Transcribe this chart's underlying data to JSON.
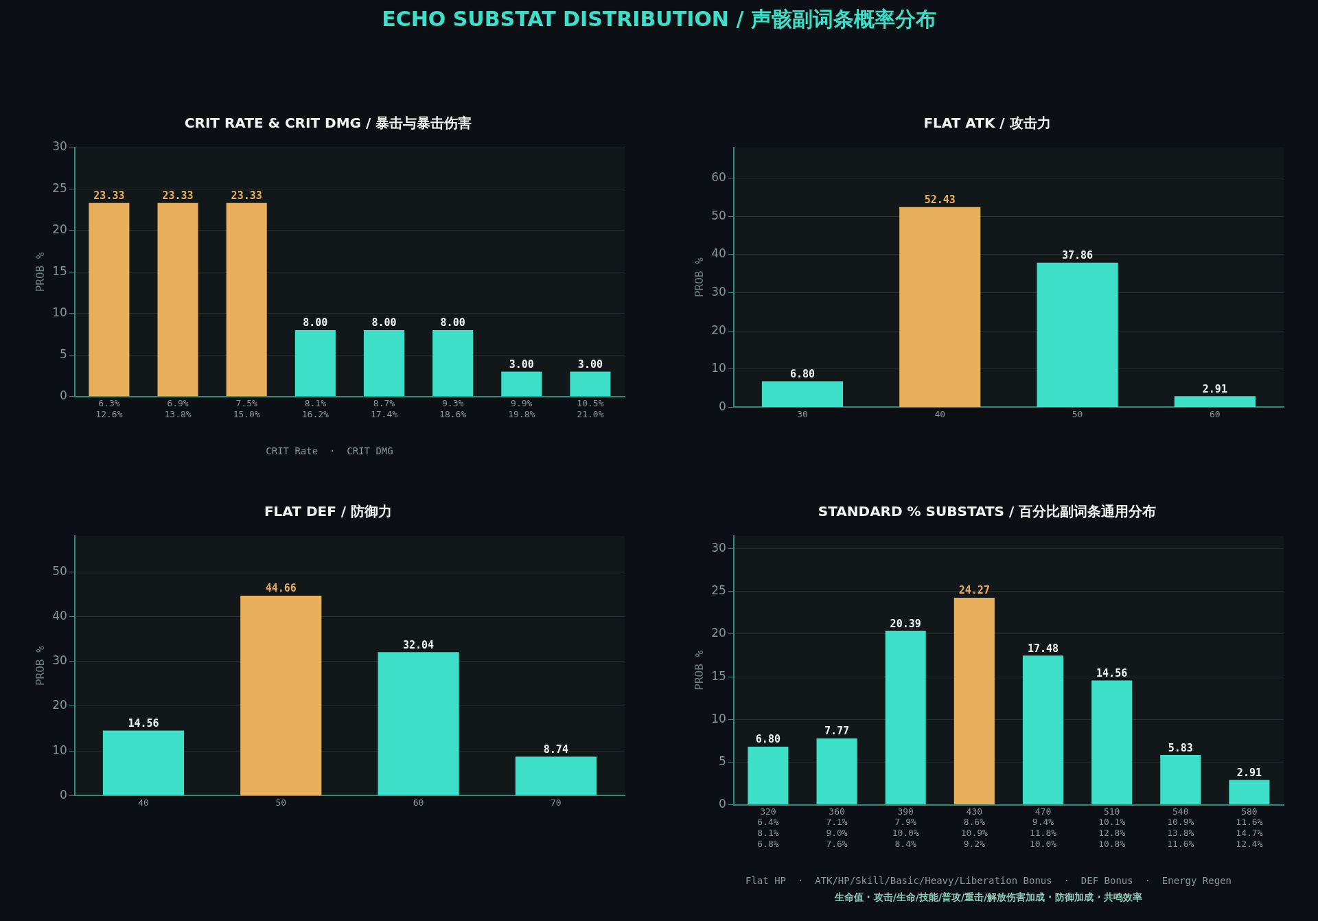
{
  "chart_data": [
    {
      "type": "other",
      "title": "ECHO SUBSTAT DISTRIBUTION / 声骸副词条概率分布"
    },
    {
      "type": "bar",
      "title": "CRIT RATE & CRIT DMG / 暴击与暴击伤害",
      "ylabel": "PROB %",
      "categories": [
        "6.3%\n12.6%",
        "6.9%\n13.8%",
        "7.5%\n15.0%",
        "8.1%\n16.2%",
        "8.7%\n17.4%",
        "9.3%\n18.6%",
        "9.9%\n19.8%",
        "10.5%\n21.0%"
      ],
      "values": [
        23.33,
        23.33,
        23.33,
        8.0,
        8.0,
        8.0,
        3.0,
        3.0
      ],
      "colors": [
        "#e8b05c",
        "#e8b05c",
        "#e8b05c",
        "#3ddfc8",
        "#3ddfc8",
        "#3ddfc8",
        "#3ddfc8",
        "#3ddfc8"
      ],
      "value_labels": [
        "23.33",
        "23.33",
        "23.33",
        "8.00",
        "8.00",
        "8.00",
        "3.00",
        "3.00"
      ],
      "ylim": [
        0,
        30
      ],
      "yticks": [
        0,
        5,
        10,
        15,
        20,
        25,
        30
      ],
      "grid": "y",
      "legend": false,
      "annotations": [
        "CRIT Rate  ·  CRIT DMG"
      ]
    },
    {
      "type": "bar",
      "title": "FLAT ATK / 攻击力",
      "ylabel": "PROB %",
      "categories": [
        "30",
        "40",
        "50",
        "60"
      ],
      "values": [
        6.8,
        52.43,
        37.86,
        2.91
      ],
      "colors": [
        "#3ddfc8",
        "#e8b05c",
        "#3ddfc8",
        "#3ddfc8"
      ],
      "value_labels": [
        "6.80",
        "52.43",
        "37.86",
        "2.91"
      ],
      "ylim": [
        0,
        68
      ],
      "yticks": [
        0,
        10,
        20,
        30,
        40,
        50,
        60
      ],
      "grid": "y",
      "legend": false
    },
    {
      "type": "bar",
      "title": "FLAT DEF / 防御力",
      "ylabel": "PROB %",
      "categories": [
        "40",
        "50",
        "60",
        "70"
      ],
      "values": [
        14.56,
        44.66,
        32.04,
        8.74
      ],
      "colors": [
        "#3ddfc8",
        "#e8b05c",
        "#3ddfc8",
        "#3ddfc8"
      ],
      "value_labels": [
        "14.56",
        "44.66",
        "32.04",
        "8.74"
      ],
      "ylim": [
        0,
        58
      ],
      "yticks": [
        0,
        10,
        20,
        30,
        40,
        50
      ],
      "grid": "y",
      "legend": false
    },
    {
      "type": "bar",
      "title": "STANDARD % SUBSTATS / 百分比副词条通用分布",
      "ylabel": "PROB %",
      "categories": [
        "320\n6.4%\n8.1%\n6.8%",
        "360\n7.1%\n9.0%\n7.6%",
        "390\n7.9%\n10.0%\n8.4%",
        "430\n8.6%\n10.9%\n9.2%",
        "470\n9.4%\n11.8%\n10.0%",
        "510\n10.1%\n12.8%\n10.8%",
        "540\n10.9%\n13.8%\n11.6%",
        "580\n11.6%\n14.7%\n12.4%"
      ],
      "values": [
        6.8,
        7.77,
        20.39,
        24.27,
        17.48,
        14.56,
        5.83,
        2.91
      ],
      "colors": [
        "#3ddfc8",
        "#3ddfc8",
        "#3ddfc8",
        "#e8b05c",
        "#3ddfc8",
        "#3ddfc8",
        "#3ddfc8",
        "#3ddfc8"
      ],
      "value_labels": [
        "6.80",
        "7.77",
        "20.39",
        "24.27",
        "17.48",
        "14.56",
        "5.83",
        "2.91"
      ],
      "ylim": [
        0,
        31.5
      ],
      "yticks": [
        0,
        5,
        10,
        15,
        20,
        25,
        30
      ],
      "grid": "y",
      "legend": false,
      "annotations": [
        "Flat HP  ·  ATK/HP/Skill/Basic/Heavy/Liberation Bonus  ·  DEF Bonus  ·  Energy Regen",
        "生命值 · 攻击/生命/技能/普攻/重击/解放伤害加成 · 防御加成 · 共鸣效率"
      ]
    }
  ]
}
